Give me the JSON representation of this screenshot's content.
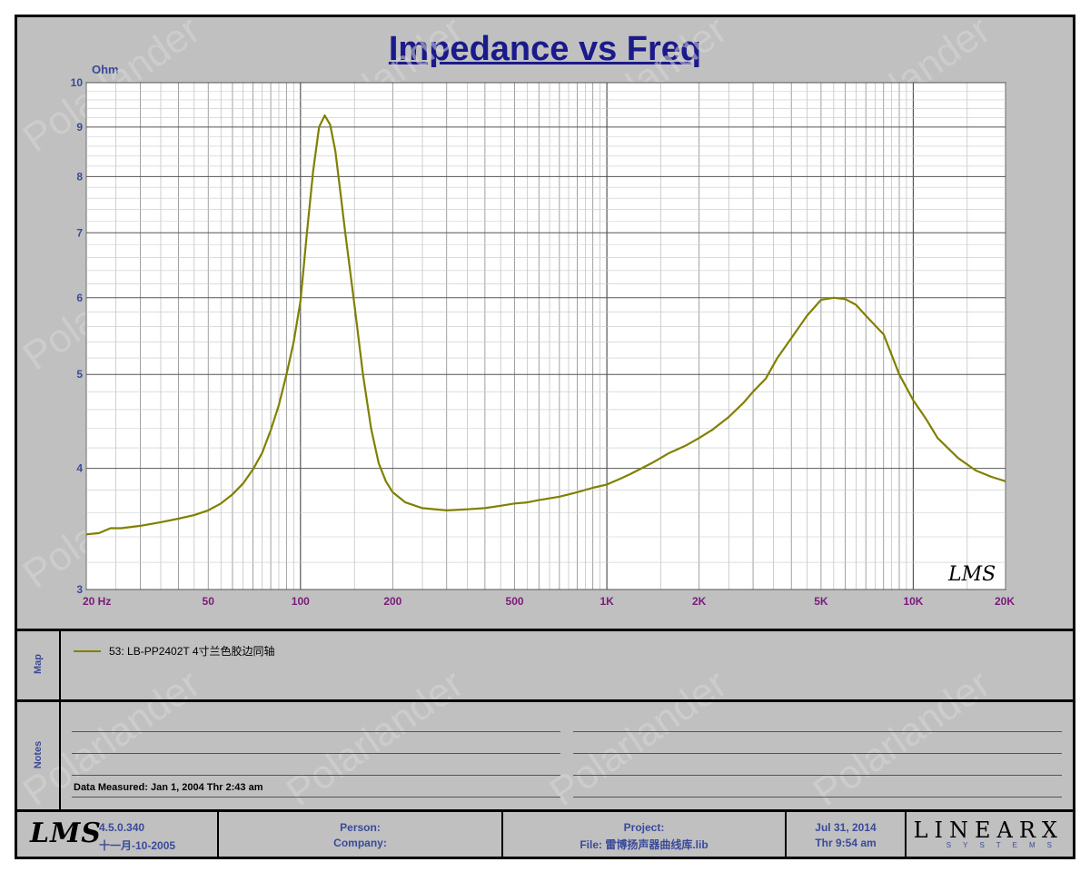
{
  "chart_data": {
    "type": "line",
    "title": "Impedance vs Freq",
    "y_unit": "Ohm",
    "x_scale": "log",
    "y_scale": "log",
    "xlim": [
      20,
      20000
    ],
    "ylim": [
      3,
      10
    ],
    "x_ticks": [
      {
        "value": 20,
        "label": "20  Hz"
      },
      {
        "value": 50,
        "label": "50"
      },
      {
        "value": 100,
        "label": "100"
      },
      {
        "value": 200,
        "label": "200"
      },
      {
        "value": 500,
        "label": "500"
      },
      {
        "value": 1000,
        "label": "1K"
      },
      {
        "value": 2000,
        "label": "2K"
      },
      {
        "value": 5000,
        "label": "5K"
      },
      {
        "value": 10000,
        "label": "10K"
      },
      {
        "value": 20000,
        "label": "20K"
      }
    ],
    "y_ticks": [
      {
        "value": 10,
        "label": "10"
      },
      {
        "value": 9,
        "label": "9"
      },
      {
        "value": 8,
        "label": "8"
      },
      {
        "value": 7,
        "label": "7"
      },
      {
        "value": 6,
        "label": "6"
      },
      {
        "value": 5,
        "label": "5"
      },
      {
        "value": 4,
        "label": "4"
      },
      {
        "value": 3,
        "label": "3"
      }
    ],
    "grid": true,
    "series": [
      {
        "name": "53: LB-PP2402T 4寸兰色胶边同轴",
        "color": "#808000",
        "x": [
          20,
          22,
          24,
          26,
          30,
          35,
          40,
          45,
          50,
          55,
          60,
          65,
          70,
          75,
          80,
          85,
          90,
          95,
          100,
          105,
          110,
          115,
          120,
          125,
          130,
          135,
          140,
          150,
          160,
          170,
          180,
          190,
          200,
          220,
          250,
          300,
          350,
          400,
          450,
          500,
          550,
          600,
          700,
          800,
          900,
          1000,
          1100,
          1200,
          1400,
          1600,
          1800,
          2000,
          2200,
          2500,
          2800,
          3000,
          3300,
          3600,
          4000,
          4500,
          5000,
          5500,
          6000,
          6500,
          7000,
          8000,
          9000,
          10000,
          11000,
          12000,
          14000,
          16000,
          18000,
          20000
        ],
        "y": [
          3.42,
          3.43,
          3.47,
          3.47,
          3.49,
          3.52,
          3.55,
          3.58,
          3.62,
          3.68,
          3.76,
          3.86,
          3.99,
          4.15,
          4.38,
          4.65,
          5.0,
          5.4,
          5.95,
          7.0,
          8.1,
          9.0,
          9.25,
          9.05,
          8.5,
          7.7,
          7.0,
          5.9,
          5.0,
          4.4,
          4.05,
          3.88,
          3.78,
          3.69,
          3.64,
          3.62,
          3.63,
          3.64,
          3.66,
          3.68,
          3.69,
          3.71,
          3.74,
          3.78,
          3.82,
          3.85,
          3.9,
          3.95,
          4.05,
          4.15,
          4.22,
          4.3,
          4.38,
          4.52,
          4.68,
          4.8,
          4.95,
          5.2,
          5.45,
          5.75,
          5.97,
          6.0,
          5.98,
          5.9,
          5.75,
          5.5,
          5.0,
          4.7,
          4.5,
          4.3,
          4.1,
          3.98,
          3.92,
          3.88
        ]
      }
    ]
  },
  "map": {
    "label": "Map",
    "legend": "53: LB-PP2402T 4寸兰色胶边同轴"
  },
  "notes": {
    "label": "Notes",
    "data_measured": "Data Measured: Jan  1, 2004  Thr  2:43 am"
  },
  "footer": {
    "logo": "LMS",
    "version": "4.5.0.340",
    "version_date": "十一月-10-2005",
    "person": "Person:",
    "company": "Company:",
    "project": "Project:",
    "file": "File: 雷博扬声器曲线库.lib",
    "date": "Jul 31, 2014",
    "time": "Thr  9:54 am",
    "brand": "LINEARX",
    "brand_sub": "SYSTEMS"
  },
  "watermark": "Polarlander",
  "plot_logo": "LMS"
}
